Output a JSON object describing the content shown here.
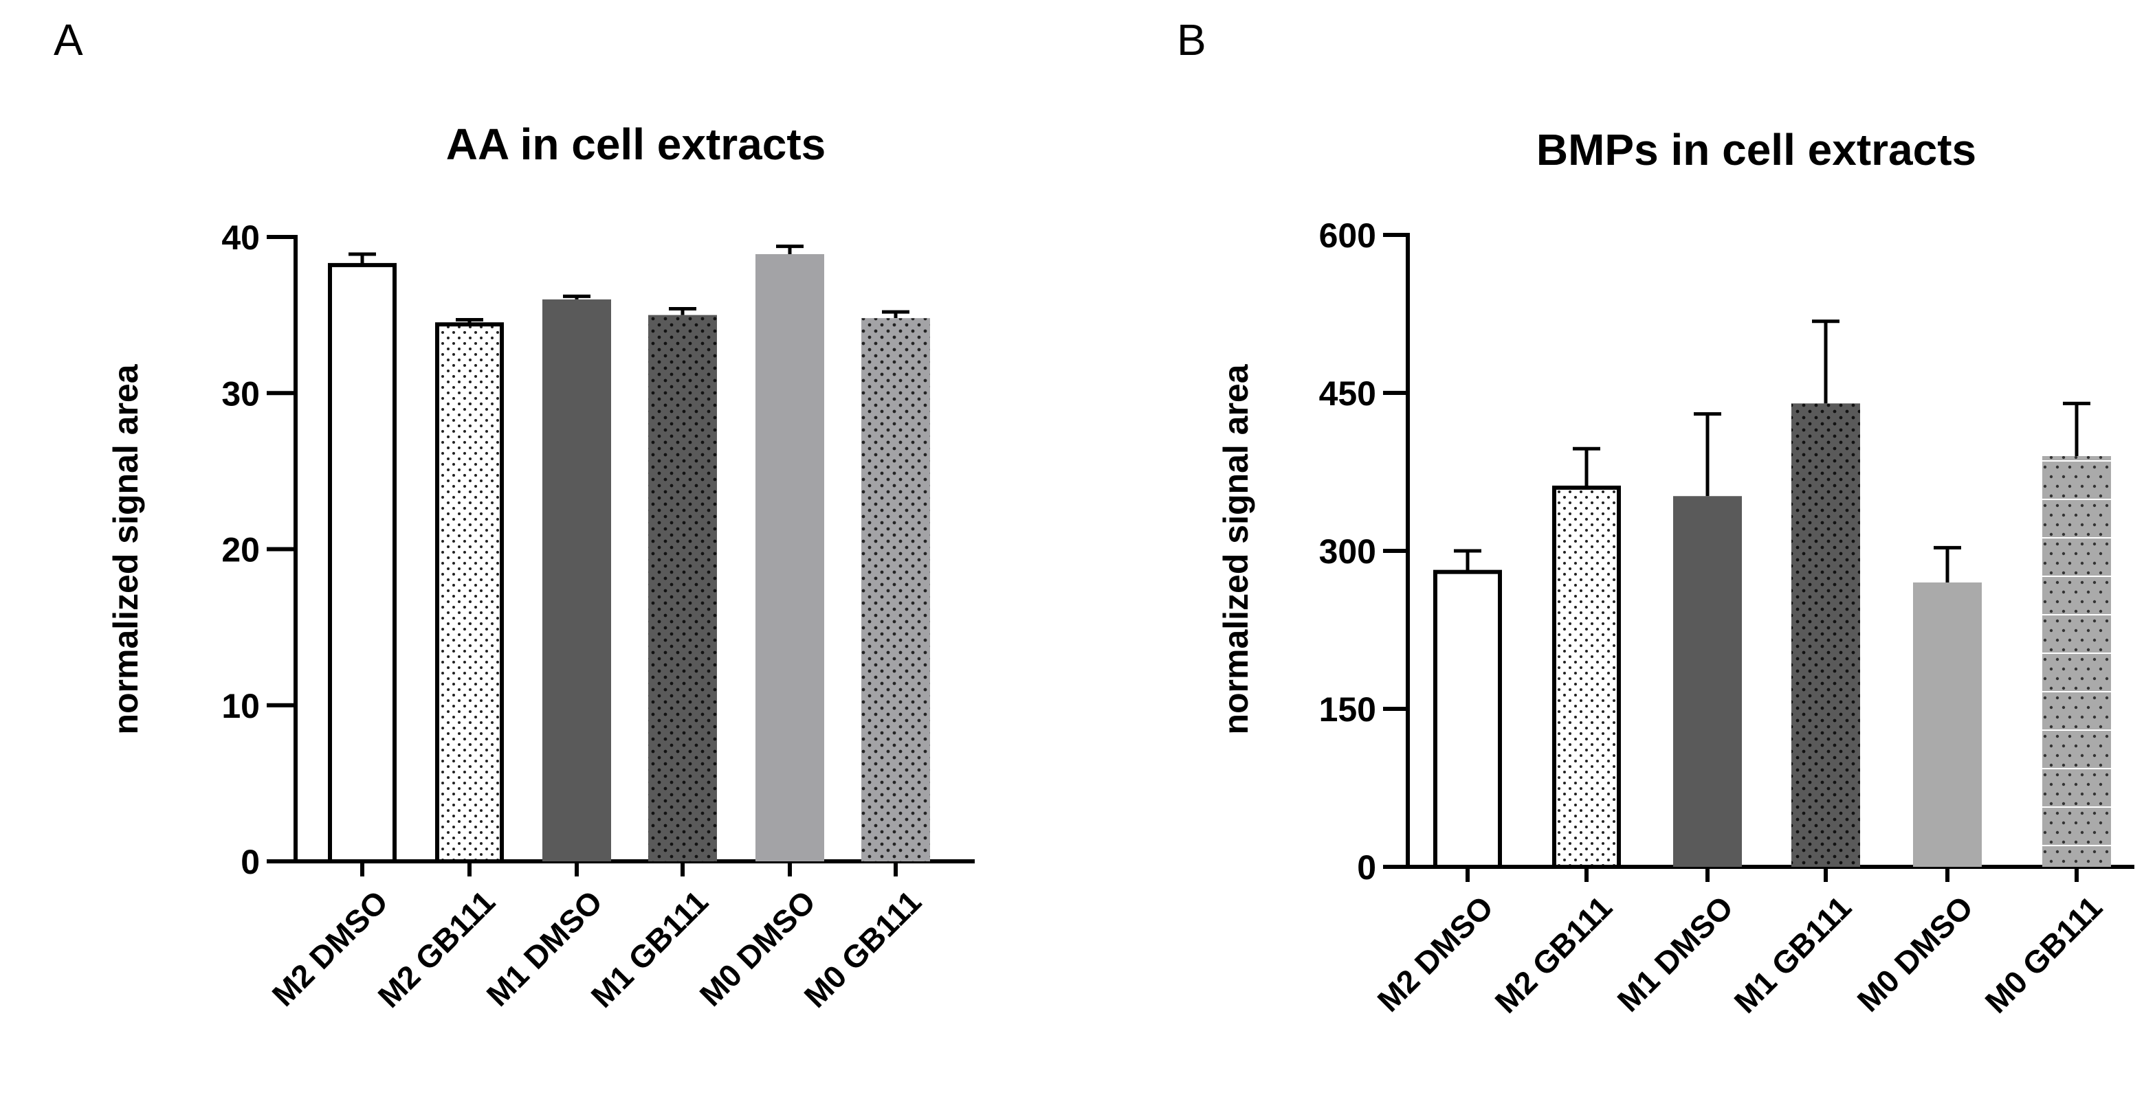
{
  "chart_data": [
    {
      "type": "bar",
      "panel": "A",
      "title": "AA in cell extracts",
      "xlabel": "",
      "ylabel": "normalized signal area",
      "ylim": [
        0,
        40
      ],
      "yticks": [
        0,
        10,
        20,
        30,
        40
      ],
      "categories": [
        "M2 DMSO",
        "M2 GB111",
        "M1 DMSO",
        "M1 GB111",
        "M0 DMSO",
        "M0 GB111"
      ],
      "values": [
        38.2,
        34.4,
        36.0,
        35.0,
        38.9,
        34.8
      ],
      "errors": [
        0.7,
        0.3,
        0.2,
        0.4,
        0.5,
        0.4
      ],
      "colors": [
        "#ffffff",
        "#ffffff",
        "#5a5a5a",
        "#5a5a5a",
        "#a3a3a6",
        "#a3a3a6"
      ],
      "patterns": [
        "none",
        "dots-light",
        "none",
        "dots-dark",
        "none",
        "dots-dark"
      ]
    },
    {
      "type": "bar",
      "panel": "B",
      "title": "BMPs in cell extracts",
      "xlabel": "",
      "ylabel": "normalized signal area",
      "ylim": [
        0,
        600
      ],
      "yticks": [
        0,
        150,
        300,
        450,
        600
      ],
      "categories": [
        "M2 DMSO",
        "M2 GB111",
        "M1 DMSO",
        "M1 GB111",
        "M0 DMSO",
        "M0 GB111"
      ],
      "values": [
        280,
        360,
        352,
        440,
        270,
        390
      ],
      "errors": [
        20,
        37,
        78,
        78,
        33,
        50
      ],
      "colors": [
        "#ffffff",
        "#ffffff",
        "#5a5a5a",
        "#5a5a5a",
        "#aaaaaa",
        "#aaaaaa"
      ],
      "patterns": [
        "none",
        "dots-light",
        "none",
        "dots-dark",
        "none",
        "dots-grid"
      ]
    }
  ]
}
